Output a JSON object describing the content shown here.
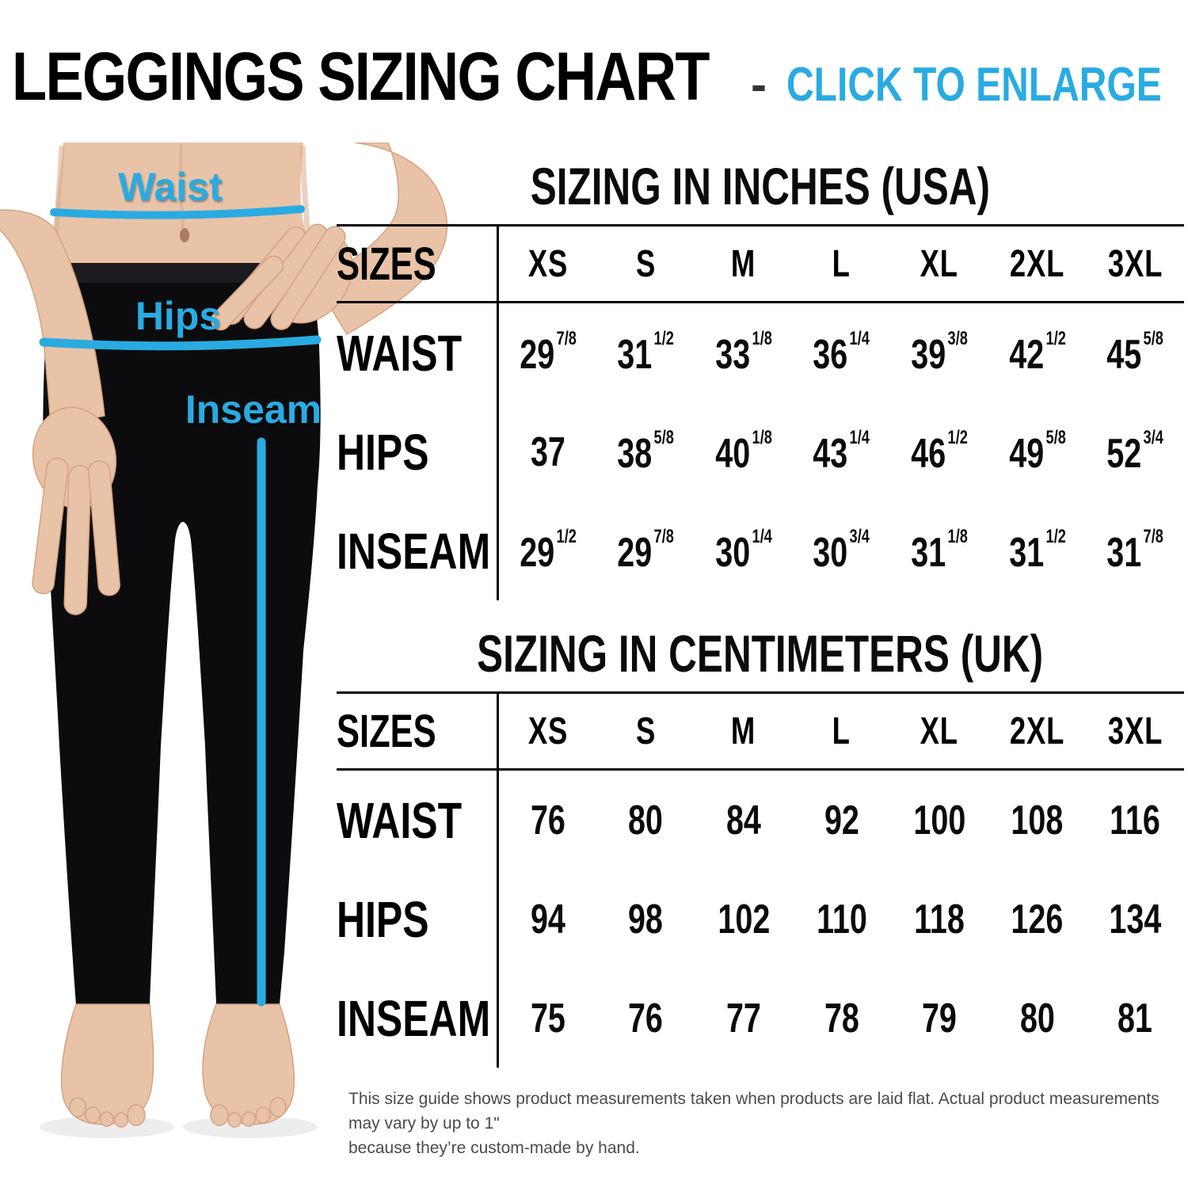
{
  "header": {
    "title": "LEGGINGS SIZING CHART",
    "separator": "-",
    "action": "CLICK TO ENLARGE"
  },
  "colors": {
    "accent": "#29abe2",
    "ink": "#000000",
    "note_text": "#4b4b4b",
    "skin": "#e9c3a7",
    "leggings": "#0c0c0e"
  },
  "figure": {
    "waist_label": "Waist",
    "hips_label": "Hips",
    "inseam_label": "Inseam"
  },
  "tables": [
    {
      "title": "SIZING IN INCHES (USA)",
      "header_label": "SIZES",
      "sizes": [
        "XS",
        "S",
        "M",
        "L",
        "XL",
        "2XL",
        "3XL"
      ],
      "rows": [
        {
          "label": "WAIST",
          "values": [
            {
              "w": "29",
              "f": "7/8"
            },
            {
              "w": "31",
              "f": "1/2"
            },
            {
              "w": "33",
              "f": "1/8"
            },
            {
              "w": "36",
              "f": "1/4"
            },
            {
              "w": "39",
              "f": "3/8"
            },
            {
              "w": "42",
              "f": "1/2"
            },
            {
              "w": "45",
              "f": "5/8"
            }
          ]
        },
        {
          "label": "HIPS",
          "values": [
            {
              "w": "37",
              "f": ""
            },
            {
              "w": "38",
              "f": "5/8"
            },
            {
              "w": "40",
              "f": "1/8"
            },
            {
              "w": "43",
              "f": "1/4"
            },
            {
              "w": "46",
              "f": "1/2"
            },
            {
              "w": "49",
              "f": "5/8"
            },
            {
              "w": "52",
              "f": "3/4"
            }
          ]
        },
        {
          "label": "INSEAM",
          "values": [
            {
              "w": "29",
              "f": "1/2"
            },
            {
              "w": "29",
              "f": "7/8"
            },
            {
              "w": "30",
              "f": "1/4"
            },
            {
              "w": "30",
              "f": "3/4"
            },
            {
              "w": "31",
              "f": "1/8"
            },
            {
              "w": "31",
              "f": "1/2"
            },
            {
              "w": "31",
              "f": "7/8"
            }
          ]
        }
      ]
    },
    {
      "title": "SIZING IN CENTIMETERS (UK)",
      "header_label": "SIZES",
      "sizes": [
        "XS",
        "S",
        "M",
        "L",
        "XL",
        "2XL",
        "3XL"
      ],
      "rows": [
        {
          "label": "WAIST",
          "values": [
            {
              "w": "76",
              "f": ""
            },
            {
              "w": "80",
              "f": ""
            },
            {
              "w": "84",
              "f": ""
            },
            {
              "w": "92",
              "f": ""
            },
            {
              "w": "100",
              "f": ""
            },
            {
              "w": "108",
              "f": ""
            },
            {
              "w": "116",
              "f": ""
            }
          ]
        },
        {
          "label": "HIPS",
          "values": [
            {
              "w": "94",
              "f": ""
            },
            {
              "w": "98",
              "f": ""
            },
            {
              "w": "102",
              "f": ""
            },
            {
              "w": "110",
              "f": ""
            },
            {
              "w": "118",
              "f": ""
            },
            {
              "w": "126",
              "f": ""
            },
            {
              "w": "134",
              "f": ""
            }
          ]
        },
        {
          "label": "INSEAM",
          "values": [
            {
              "w": "75",
              "f": ""
            },
            {
              "w": "76",
              "f": ""
            },
            {
              "w": "77",
              "f": ""
            },
            {
              "w": "78",
              "f": ""
            },
            {
              "w": "79",
              "f": ""
            },
            {
              "w": "80",
              "f": ""
            },
            {
              "w": "81",
              "f": ""
            }
          ]
        }
      ]
    }
  ],
  "footnote": {
    "line1": "This size guide shows product measurements taken when products are laid flat. Actual product measurements may vary by up to 1\"",
    "line2": "because they’re custom-made by hand."
  }
}
